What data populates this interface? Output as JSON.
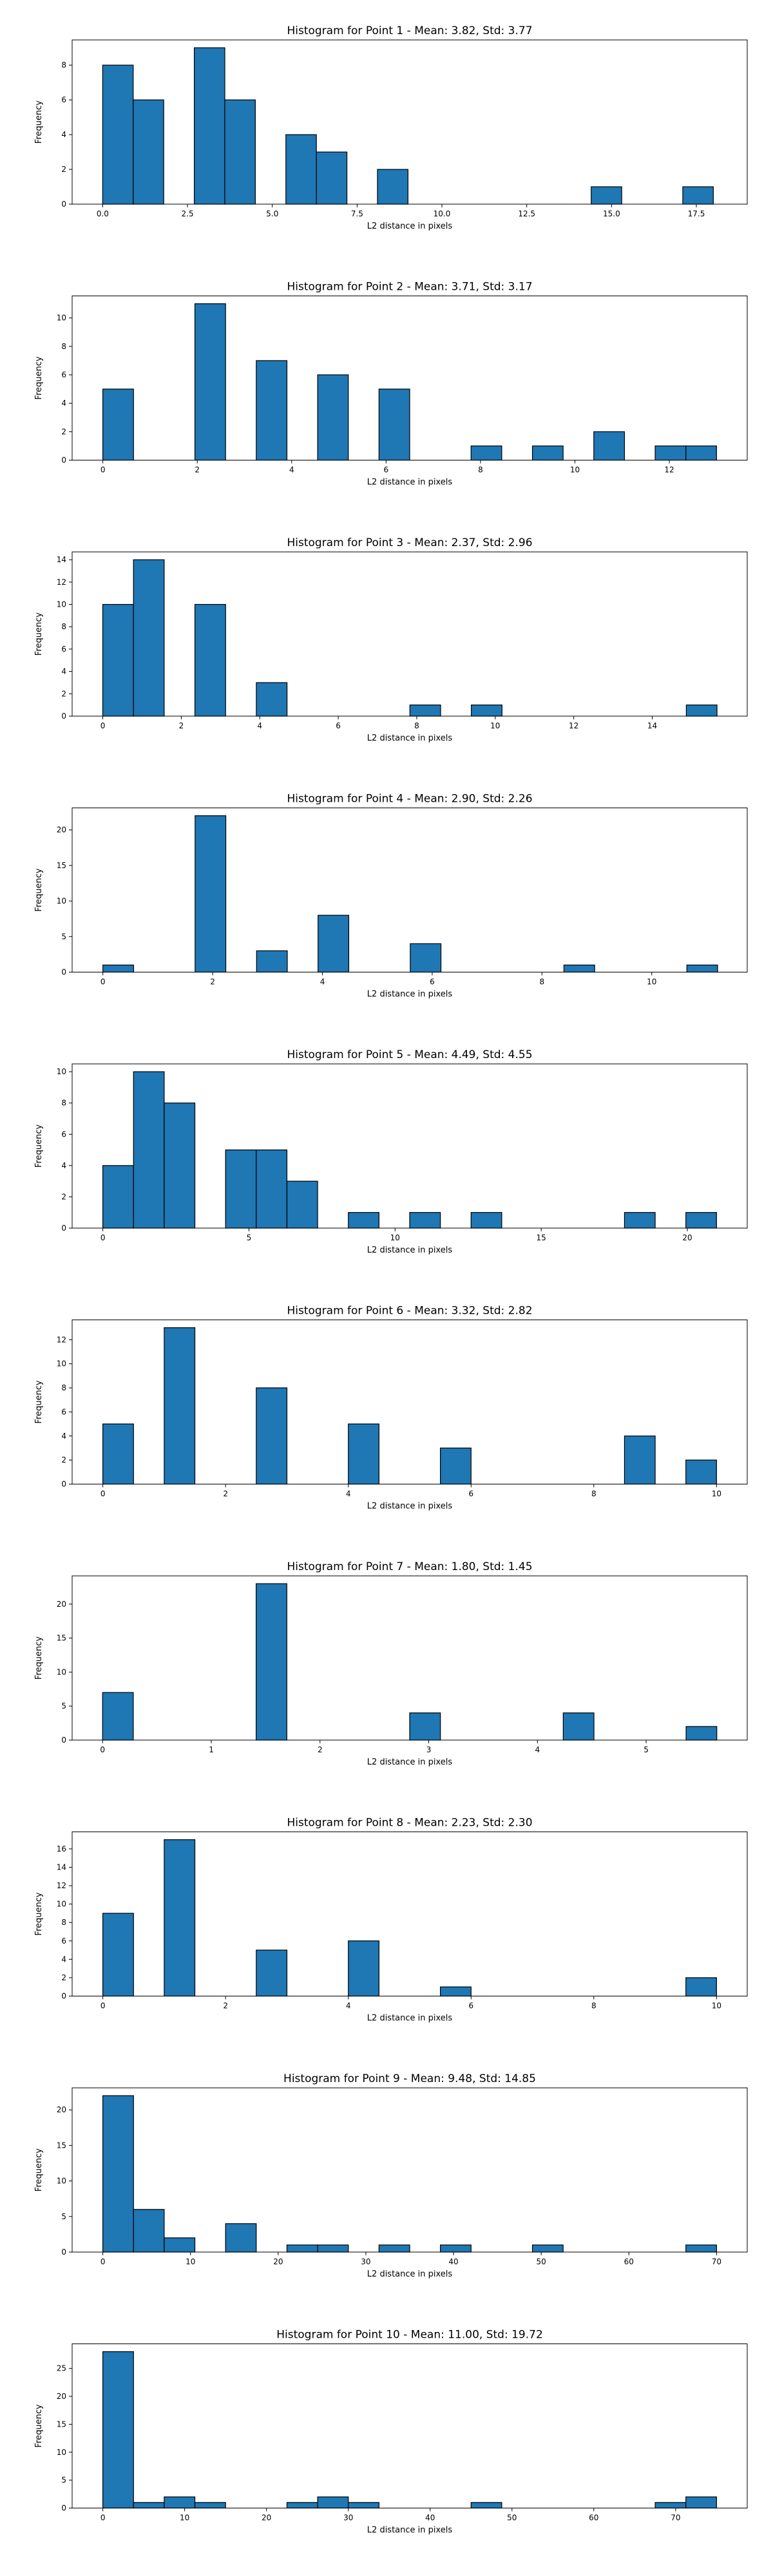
{
  "chart_data": [
    {
      "type": "bar",
      "title": "Histogram for Point 1 - Mean: 3.82, Std: 3.77",
      "xlabel": "L2 distance in pixels",
      "ylabel": "Frequency",
      "xlim": [
        -0.9,
        19.0
      ],
      "ylim": [
        0,
        9.45
      ],
      "xticks": [
        0.0,
        2.5,
        5.0,
        7.5,
        10.0,
        12.5,
        15.0,
        17.5
      ],
      "xtick_labels": [
        "0.0",
        "2.5",
        "5.0",
        "7.5",
        "10.0",
        "12.5",
        "15.0",
        "17.5"
      ],
      "yticks": [
        0,
        2,
        4,
        6,
        8
      ],
      "yrange": [
        0,
        18.0
      ],
      "bins": 20,
      "values": [
        8,
        6,
        0,
        9,
        6,
        0,
        4,
        3,
        0,
        2,
        0,
        0,
        0,
        0,
        0,
        0,
        1,
        0,
        0,
        1
      ],
      "color": "#1f77b4",
      "edgecolor": "#000000",
      "grid": false
    },
    {
      "type": "bar",
      "title": "Histogram for Point 2 - Mean: 3.71, Std: 3.17",
      "xlabel": "L2 distance in pixels",
      "ylabel": "Frequency",
      "xlim": [
        -0.65,
        13.65
      ],
      "ylim": [
        0,
        11.55
      ],
      "xticks": [
        0,
        2,
        4,
        6,
        8,
        10,
        12
      ],
      "xtick_labels": [
        "0",
        "2",
        "4",
        "6",
        "8",
        "10",
        "12"
      ],
      "yticks": [
        0,
        2,
        4,
        6,
        8,
        10
      ],
      "yrange": [
        0,
        13.0
      ],
      "bins": 20,
      "values": [
        5,
        0,
        0,
        11,
        0,
        7,
        0,
        6,
        0,
        5,
        0,
        0,
        1,
        0,
        1,
        0,
        2,
        0,
        1,
        1
      ],
      "color": "#1f77b4",
      "edgecolor": "#000000",
      "grid": false
    },
    {
      "type": "bar",
      "title": "Histogram for Point 3 - Mean: 2.37, Std: 2.96",
      "xlabel": "L2 distance in pixels",
      "ylabel": "Frequency",
      "xlim": [
        -0.78,
        16.42
      ],
      "ylim": [
        0,
        14.7
      ],
      "xticks": [
        0,
        2,
        4,
        6,
        8,
        10,
        12,
        14
      ],
      "xtick_labels": [
        "0",
        "2",
        "4",
        "6",
        "8",
        "10",
        "12",
        "14"
      ],
      "yticks": [
        0,
        2,
        4,
        6,
        8,
        10,
        12,
        14
      ],
      "yrange": [
        0,
        15.65
      ],
      "bins": 20,
      "values": [
        10,
        14,
        0,
        10,
        0,
        3,
        0,
        0,
        0,
        0,
        1,
        0,
        1,
        0,
        0,
        0,
        0,
        0,
        0,
        1
      ],
      "color": "#1f77b4",
      "edgecolor": "#000000",
      "grid": false
    },
    {
      "type": "bar",
      "title": "Histogram for Point 4 - Mean: 2.90, Std: 2.26",
      "xlabel": "L2 distance in pixels",
      "ylabel": "Frequency",
      "xlim": [
        -0.56,
        11.74
      ],
      "ylim": [
        0,
        23.1
      ],
      "xticks": [
        0,
        2,
        4,
        6,
        8,
        10
      ],
      "xtick_labels": [
        "0",
        "2",
        "4",
        "6",
        "8",
        "10"
      ],
      "yticks": [
        0,
        5,
        10,
        15,
        20
      ],
      "yrange": [
        0,
        11.2
      ],
      "bins": 20,
      "values": [
        1,
        0,
        0,
        22,
        0,
        3,
        0,
        8,
        0,
        0,
        4,
        0,
        0,
        0,
        0,
        1,
        0,
        0,
        0,
        1
      ],
      "color": "#1f77b4",
      "edgecolor": "#000000",
      "grid": false
    },
    {
      "type": "bar",
      "title": "Histogram for Point 5 - Mean: 4.49, Std: 4.55",
      "xlabel": "L2 distance in pixels",
      "ylabel": "Frequency",
      "xlim": [
        -1.05,
        22.05
      ],
      "ylim": [
        0,
        10.5
      ],
      "xticks": [
        0,
        5,
        10,
        15,
        20
      ],
      "xtick_labels": [
        "0",
        "5",
        "10",
        "15",
        "20"
      ],
      "yticks": [
        0,
        2,
        4,
        6,
        8,
        10
      ],
      "yrange": [
        0,
        21.0
      ],
      "bins": 20,
      "values": [
        4,
        10,
        8,
        0,
        5,
        5,
        3,
        0,
        1,
        0,
        1,
        0,
        1,
        0,
        0,
        0,
        0,
        1,
        0,
        1
      ],
      "color": "#1f77b4",
      "edgecolor": "#000000",
      "grid": false
    },
    {
      "type": "bar",
      "title": "Histogram for Point 6 - Mean: 3.32, Std: 2.82",
      "xlabel": "L2 distance in pixels",
      "ylabel": "Frequency",
      "xlim": [
        -0.5,
        10.5
      ],
      "ylim": [
        0,
        13.65
      ],
      "xticks": [
        0,
        2,
        4,
        6,
        8,
        10
      ],
      "xtick_labels": [
        "0",
        "2",
        "4",
        "6",
        "8",
        "10"
      ],
      "yticks": [
        0,
        2,
        4,
        6,
        8,
        10,
        12
      ],
      "yrange": [
        0,
        10.0
      ],
      "bins": 20,
      "values": [
        5,
        0,
        13,
        0,
        0,
        8,
        0,
        0,
        5,
        0,
        0,
        3,
        0,
        0,
        0,
        0,
        0,
        4,
        0,
        2
      ],
      "color": "#1f77b4",
      "edgecolor": "#000000",
      "grid": false
    },
    {
      "type": "bar",
      "title": "Histogram for Point 7 - Mean: 1.80, Std: 1.45",
      "xlabel": "L2 distance in pixels",
      "ylabel": "Frequency",
      "xlim": [
        -0.28,
        5.93
      ],
      "ylim": [
        0,
        24.15
      ],
      "xticks": [
        0,
        1,
        2,
        3,
        4,
        5
      ],
      "xtick_labels": [
        "0",
        "1",
        "2",
        "3",
        "4",
        "5"
      ],
      "yticks": [
        0,
        5,
        10,
        15,
        20
      ],
      "yrange": [
        0,
        5.65
      ],
      "bins": 20,
      "values": [
        7,
        0,
        0,
        0,
        0,
        23,
        0,
        0,
        0,
        0,
        4,
        0,
        0,
        0,
        0,
        4,
        0,
        0,
        0,
        2
      ],
      "color": "#1f77b4",
      "edgecolor": "#000000",
      "grid": false
    },
    {
      "type": "bar",
      "title": "Histogram for Point 8 - Mean: 2.23, Std: 2.30",
      "xlabel": "L2 distance in pixels",
      "ylabel": "Frequency",
      "xlim": [
        -0.5,
        10.5
      ],
      "ylim": [
        0,
        17.85
      ],
      "xticks": [
        0,
        2,
        4,
        6,
        8,
        10
      ],
      "xtick_labels": [
        "0",
        "2",
        "4",
        "6",
        "8",
        "10"
      ],
      "yticks": [
        0,
        2,
        4,
        6,
        8,
        10,
        12,
        14,
        16
      ],
      "yrange": [
        0,
        10.0
      ],
      "bins": 20,
      "values": [
        9,
        0,
        17,
        0,
        0,
        5,
        0,
        0,
        6,
        0,
        0,
        1,
        0,
        0,
        0,
        0,
        0,
        0,
        0,
        2
      ],
      "color": "#1f77b4",
      "edgecolor": "#000000",
      "grid": false
    },
    {
      "type": "bar",
      "title": "Histogram for Point 9 - Mean: 9.48, Std: 14.85",
      "xlabel": "L2 distance in pixels",
      "ylabel": "Frequency",
      "xlim": [
        -3.5,
        73.5
      ],
      "ylim": [
        0,
        23.1
      ],
      "xticks": [
        0,
        10,
        20,
        30,
        40,
        50,
        60,
        70
      ],
      "xtick_labels": [
        "0",
        "10",
        "20",
        "30",
        "40",
        "50",
        "60",
        "70"
      ],
      "yticks": [
        0,
        5,
        10,
        15,
        20
      ],
      "yrange": [
        0,
        70.0
      ],
      "bins": 20,
      "values": [
        22,
        6,
        2,
        0,
        4,
        0,
        1,
        1,
        0,
        1,
        0,
        1,
        0,
        0,
        1,
        0,
        0,
        0,
        0,
        1
      ],
      "color": "#1f77b4",
      "edgecolor": "#000000",
      "grid": false
    },
    {
      "type": "bar",
      "title": "Histogram for Point 10 - Mean: 11.00, Std: 19.72",
      "xlabel": "L2 distance in pixels",
      "ylabel": "Frequency",
      "xlim": [
        -3.75,
        78.75
      ],
      "ylim": [
        0,
        29.4
      ],
      "xticks": [
        0,
        10,
        20,
        30,
        40,
        50,
        60,
        70
      ],
      "xtick_labels": [
        "0",
        "10",
        "20",
        "30",
        "40",
        "50",
        "60",
        "70"
      ],
      "yticks": [
        0,
        5,
        10,
        15,
        20,
        25
      ],
      "yrange": [
        0,
        75.0
      ],
      "bins": 20,
      "values": [
        28,
        1,
        2,
        1,
        0,
        0,
        1,
        2,
        1,
        0,
        0,
        0,
        1,
        0,
        0,
        0,
        0,
        0,
        1,
        2
      ],
      "color": "#1f77b4",
      "edgecolor": "#000000",
      "grid": false
    }
  ]
}
